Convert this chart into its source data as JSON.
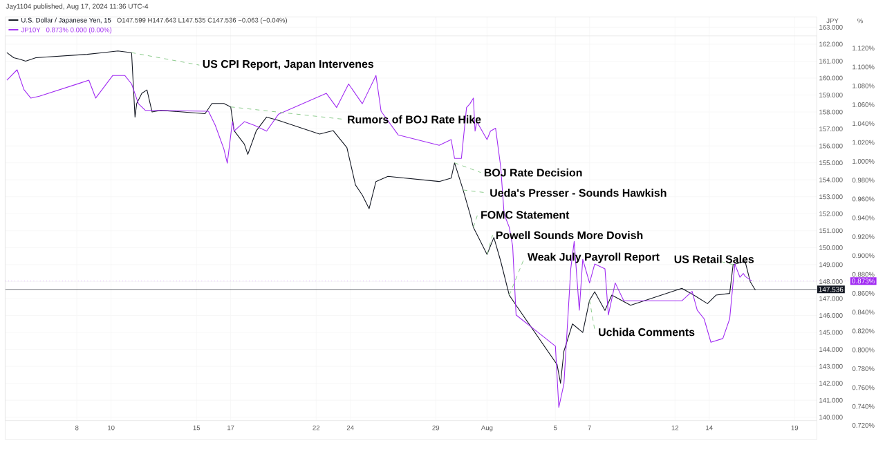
{
  "chart_data": {
    "type": "line",
    "title": "Jay1104 published, Aug 17, 2024 11:36 UTC-4",
    "ylabel": "JPY",
    "y2label": "%",
    "legend": "top left",
    "grid": true,
    "marker": "none",
    "line_style": "solid",
    "xlim": [
      "2024-07-03T19:12",
      "2024-08-20T07:12"
    ],
    "ylim": [
      139.8,
      163.6
    ],
    "y2lim": [
      0.705,
      1.133
    ],
    "xticks": [
      {
        "value": "2024-07-08",
        "label": "8"
      },
      {
        "value": "2024-07-10",
        "label": "10"
      },
      {
        "value": "2024-07-15",
        "label": "15"
      },
      {
        "value": "2024-07-17",
        "label": "17"
      },
      {
        "value": "2024-07-22",
        "label": "22"
      },
      {
        "value": "2024-07-24",
        "label": "24"
      },
      {
        "value": "2024-07-29",
        "label": "29"
      },
      {
        "value": "2024-08-01",
        "label": "Aug"
      },
      {
        "value": "2024-08-05",
        "label": "5"
      },
      {
        "value": "2024-08-07",
        "label": "7"
      },
      {
        "value": "2024-08-12",
        "label": "12"
      },
      {
        "value": "2024-08-14",
        "label": "14"
      },
      {
        "value": "2024-08-19",
        "label": "19"
      }
    ],
    "yticks": [
      {
        "value": 140,
        "label": "140.000"
      },
      {
        "value": 141,
        "label": "141.000"
      },
      {
        "value": 142,
        "label": "142.000"
      },
      {
        "value": 143,
        "label": "143.000"
      },
      {
        "value": 144,
        "label": "144.000"
      },
      {
        "value": 145,
        "label": "145.000"
      },
      {
        "value": 146,
        "label": "146.000"
      },
      {
        "value": 147,
        "label": "147.000"
      },
      {
        "value": 148,
        "label": "148.000"
      },
      {
        "value": 149,
        "label": "149.000"
      },
      {
        "value": 150,
        "label": "150.000"
      },
      {
        "value": 151,
        "label": "151.000"
      },
      {
        "value": 152,
        "label": "152.000"
      },
      {
        "value": 153,
        "label": "153.000"
      },
      {
        "value": 154,
        "label": "154.000"
      },
      {
        "value": 155,
        "label": "155.000"
      },
      {
        "value": 156,
        "label": "156.000"
      },
      {
        "value": 157,
        "label": "157.000"
      },
      {
        "value": 158,
        "label": "158.000"
      },
      {
        "value": 159,
        "label": "159.000"
      },
      {
        "value": 160,
        "label": "160.000"
      },
      {
        "value": 161,
        "label": "161.000"
      },
      {
        "value": 162,
        "label": "162.000"
      },
      {
        "value": 163,
        "label": "163.000"
      }
    ],
    "y2ticks": [
      {
        "value": 0.72,
        "label": "0.720%"
      },
      {
        "value": 0.74,
        "label": "0.740%"
      },
      {
        "value": 0.76,
        "label": "0.760%"
      },
      {
        "value": 0.78,
        "label": "0.780%"
      },
      {
        "value": 0.8,
        "label": "0.800%"
      },
      {
        "value": 0.82,
        "label": "0.820%"
      },
      {
        "value": 0.84,
        "label": "0.840%"
      },
      {
        "value": 0.86,
        "label": "0.860%"
      },
      {
        "value": 0.88,
        "label": "0.880%"
      },
      {
        "value": 0.9,
        "label": "0.900%"
      },
      {
        "value": 0.92,
        "label": "0.920%"
      },
      {
        "value": 0.94,
        "label": "0.940%"
      },
      {
        "value": 0.96,
        "label": "0.960%"
      },
      {
        "value": 0.98,
        "label": "0.980%"
      },
      {
        "value": 1.0,
        "label": "1.000%"
      },
      {
        "value": 1.02,
        "label": "1.020%"
      },
      {
        "value": 1.04,
        "label": "1.040%"
      },
      {
        "value": 1.06,
        "label": "1.060%"
      },
      {
        "value": 1.08,
        "label": "1.080%"
      },
      {
        "value": 1.1,
        "label": "1.100%"
      },
      {
        "value": 1.12,
        "label": "1.120%"
      }
    ],
    "series": [
      {
        "name": "U.S. Dollar / Japanese Yen, 15",
        "color": "#131722",
        "axis": "y",
        "x": [
          "2024-07-03T21:36",
          "2024-07-04T07:12",
          "2024-07-04T16:48",
          "2024-07-05T00:00",
          "2024-07-05T14:24",
          "2024-07-08T14:24",
          "2024-07-09T12:00",
          "2024-07-10T09:36",
          "2024-07-11T04:48",
          "2024-07-11T09:36",
          "2024-07-11T12:00",
          "2024-07-11T19:12",
          "2024-07-12T02:24",
          "2024-07-12T09:36",
          "2024-07-12T21:36",
          "2024-07-15T12:00",
          "2024-07-15T21:36",
          "2024-07-16T14:24",
          "2024-07-17T00:00",
          "2024-07-17T04:48",
          "2024-07-17T19:12",
          "2024-07-18T00:00",
          "2024-07-18T12:00",
          "2024-07-19T02:24",
          "2024-07-19T19:12",
          "2024-07-22T04:48",
          "2024-07-23T00:00",
          "2024-07-23T19:12",
          "2024-07-24T07:12",
          "2024-07-24T16:48",
          "2024-07-25T02:24",
          "2024-07-25T12:00",
          "2024-07-26T04:48",
          "2024-07-29T04:48",
          "2024-07-29T21:36",
          "2024-07-30T02:24",
          "2024-07-30T14:24",
          "2024-07-31T00:00",
          "2024-07-31T04:48",
          "2024-07-31T14:24",
          "2024-08-01T00:00",
          "2024-08-01T09:36",
          "2024-08-01T19:12",
          "2024-08-02T07:12",
          "2024-08-02T16:48",
          "2024-08-05T02:24",
          "2024-08-05T07:12",
          "2024-08-05T12:00",
          "2024-08-06T00:00",
          "2024-08-06T14:24",
          "2024-08-07T00:00",
          "2024-08-07T07:12",
          "2024-08-07T21:36",
          "2024-08-08T07:12",
          "2024-08-09T09:36",
          "2024-08-12T09:36",
          "2024-08-13T02:24",
          "2024-08-13T21:36",
          "2024-08-14T09:36",
          "2024-08-15T04:48",
          "2024-08-15T09:36",
          "2024-08-16T02:24",
          "2024-08-16T09:36",
          "2024-08-16T16:48"
        ],
        "values": [
          161.5,
          161.2,
          161.1,
          161.0,
          161.2,
          161.4,
          161.5,
          161.6,
          161.5,
          157.7,
          158.5,
          159.1,
          159.3,
          158.0,
          158.1,
          157.9,
          158.5,
          158.5,
          158.3,
          156.9,
          156.1,
          155.5,
          156.9,
          157.7,
          157.5,
          156.7,
          156.9,
          155.9,
          153.7,
          153.1,
          152.3,
          153.9,
          154.2,
          153.9,
          154.1,
          155.0,
          153.4,
          152.0,
          151.2,
          150.4,
          149.6,
          150.6,
          149.2,
          147.2,
          146.6,
          143.1,
          142.0,
          143.9,
          145.5,
          145.0,
          146.9,
          147.4,
          146.3,
          147.2,
          146.6,
          147.6,
          147.2,
          146.7,
          147.2,
          147.3,
          149.0,
          149.2,
          148.0,
          147.5
        ]
      },
      {
        "name": "JP10Y",
        "color": "#a12cf2",
        "axis": "y2",
        "x": [
          "2024-07-03T21:36",
          "2024-07-04T12:00",
          "2024-07-04T21:36",
          "2024-07-05T07:12",
          "2024-07-05T19:12",
          "2024-07-08T04:48",
          "2024-07-08T16:48",
          "2024-07-09T02:24",
          "2024-07-10T02:24",
          "2024-07-10T19:12",
          "2024-07-11T04:48",
          "2024-07-11T14:24",
          "2024-07-12T00:00",
          "2024-07-12T09:36",
          "2024-07-15T16:48",
          "2024-07-16T02:24",
          "2024-07-16T14:24",
          "2024-07-16T19:12",
          "2024-07-17T02:24",
          "2024-07-17T04:48",
          "2024-07-17T19:12",
          "2024-07-18T09:36",
          "2024-07-19T02:24",
          "2024-07-19T19:12",
          "2024-07-22T14:24",
          "2024-07-23T04:48",
          "2024-07-23T21:36",
          "2024-07-24T16:48",
          "2024-07-25T12:00",
          "2024-07-25T19:12",
          "2024-07-26T19:12",
          "2024-07-29T04:48",
          "2024-07-29T21:36",
          "2024-07-30T02:24",
          "2024-07-30T12:00",
          "2024-07-30T19:12",
          "2024-07-31T00:00",
          "2024-07-31T04:48",
          "2024-07-31T07:12",
          "2024-07-31T09:36",
          "2024-08-01T00:00",
          "2024-08-01T04:48",
          "2024-08-01T12:00",
          "2024-08-01T19:12",
          "2024-08-02T00:00",
          "2024-08-02T07:12",
          "2024-08-02T12:00",
          "2024-08-02T16:48",
          "2024-08-05T00:00",
          "2024-08-05T04:48",
          "2024-08-05T12:00",
          "2024-08-05T21:36",
          "2024-08-06T02:24",
          "2024-08-06T09:36",
          "2024-08-06T14:24",
          "2024-08-07T00:00",
          "2024-08-07T07:12",
          "2024-08-07T21:36",
          "2024-08-08T02:24",
          "2024-08-08T12:00",
          "2024-08-09T00:00",
          "2024-08-09T14:24",
          "2024-08-12T09:36",
          "2024-08-13T00:00",
          "2024-08-13T07:12",
          "2024-08-13T16:48",
          "2024-08-14T02:24",
          "2024-08-14T19:12",
          "2024-08-15T04:48",
          "2024-08-15T12:00",
          "2024-08-15T19:12",
          "2024-08-16T00:00",
          "2024-08-16T02:24",
          "2024-08-16T12:00"
        ],
        "values": [
          1.086,
          1.097,
          1.076,
          1.067,
          1.069,
          1.083,
          1.086,
          1.067,
          1.091,
          1.091,
          1.082,
          1.061,
          1.054,
          1.054,
          1.053,
          1.038,
          1.013,
          0.998,
          1.042,
          1.032,
          1.042,
          1.038,
          1.032,
          1.05,
          1.072,
          1.057,
          1.082,
          1.061,
          1.091,
          1.053,
          1.028,
          1.017,
          1.023,
          1.003,
          1.003,
          1.057,
          1.061,
          1.067,
          1.032,
          1.042,
          1.023,
          1.032,
          1.035,
          0.994,
          0.944,
          0.93,
          0.91,
          0.837,
          0.804,
          0.739,
          0.764,
          0.886,
          0.915,
          0.842,
          0.896,
          0.871,
          0.891,
          0.886,
          0.837,
          0.871,
          0.852,
          0.852,
          0.852,
          0.862,
          0.842,
          0.833,
          0.808,
          0.812,
          0.833,
          0.891,
          0.877,
          0.881,
          0.878,
          0.873
        ]
      }
    ],
    "ref_lines": [
      {
        "axis": "y",
        "value": 147.536,
        "label": "147.536",
        "color": "#131722"
      },
      {
        "axis": "y2",
        "value": 0.873,
        "label": "0.873%",
        "color": "#a12cf2",
        "line_style": "dotted"
      }
    ],
    "annotations": [
      {
        "text": "US CPI Report, Japan Intervenes",
        "x": "2024-07-11T04:48",
        "y": 161.5
      },
      {
        "text": "Rumors of BOJ Rate Hike",
        "x": "2024-07-17T00:00",
        "y": 158.3
      },
      {
        "text": "BOJ Rate Decision",
        "x": "2024-07-30T02:24",
        "y": 155.0
      },
      {
        "text": "Ueda's Presser - Sounds Hawkish",
        "x": "2024-07-30T14:24",
        "y": 153.4
      },
      {
        "text": "FOMC Statement",
        "x": "2024-07-31T04:48",
        "y": 151.2
      },
      {
        "text": "Powell Sounds More Dovish",
        "x": "2024-08-01T00:00",
        "y": 149.6
      },
      {
        "text": "Weak July Payroll Report",
        "x": "2024-08-02T07:12",
        "y": 147.2
      },
      {
        "text": "Uchida Comments",
        "x": "2024-08-07T00:00",
        "y": 146.9
      },
      {
        "text": "US Retail Sales",
        "x": "2024-08-15T09:36",
        "y": 149.0
      },
      "O147.599 H147.643 L147.535 C147.536 −0.063 (−0.04%)",
      "0.873% 0.000 (0.00%)"
    ]
  }
}
